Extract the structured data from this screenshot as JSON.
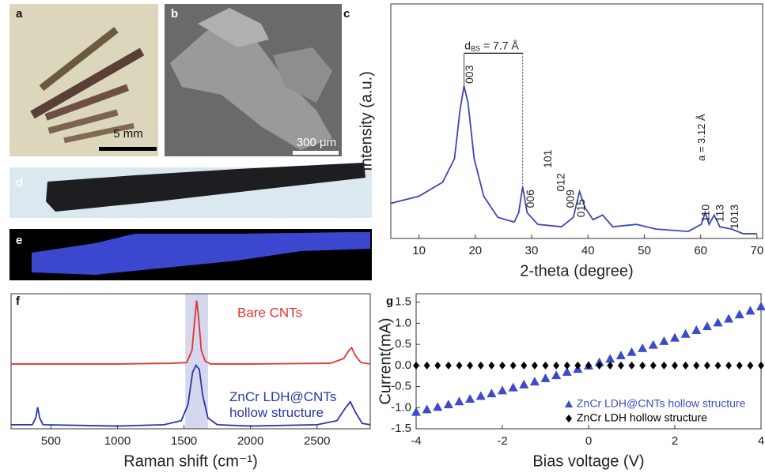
{
  "figure": {
    "panel_labels": [
      "a",
      "b",
      "c",
      "d",
      "e",
      "f",
      "g"
    ],
    "scale_bars": [
      "5 mm",
      "300 μm"
    ]
  },
  "chart_data": [
    {
      "type": "line",
      "x_label": "2-theta (degree)",
      "y_label": "Intensity (a.u.)",
      "x": [
        5,
        10,
        14.2,
        16.3,
        17.3,
        18.0,
        18.7,
        19.8,
        21.5,
        24.0,
        26.9,
        27.7,
        28.4,
        29.2,
        31.1,
        35.3,
        37.4,
        38.5,
        39.5,
        40.9,
        42.6,
        44.4,
        48.6,
        52.1,
        57.8,
        60.1,
        60.8,
        61.5,
        62.4,
        63.4,
        65.5,
        67.6,
        70
      ],
      "series": [
        {
          "color": "#3b47b3",
          "values": [
            15,
            18,
            24,
            34,
            55,
            65,
            58,
            34,
            18,
            9,
            7,
            11,
            22,
            11,
            6,
            5,
            9,
            20,
            13,
            8,
            10,
            5,
            6,
            4,
            3,
            6,
            11,
            6,
            10,
            5,
            4,
            2,
            2
          ]
        }
      ],
      "xlim": [
        5,
        71
      ],
      "xticks": [
        10,
        20,
        30,
        40,
        50,
        60,
        70
      ],
      "ylim": [
        0,
        100
      ],
      "peak_labels": [
        {
          "text": "003",
          "x": 19.1,
          "y": 66
        },
        {
          "text": "006",
          "x": 29.9,
          "y": 13
        },
        {
          "text": "101",
          "x": 33.0,
          "y": 30
        },
        {
          "text": "012",
          "x": 35.3,
          "y": 20
        },
        {
          "text": "009",
          "x": 37.0,
          "y": 13
        },
        {
          "text": "015",
          "x": 38.9,
          "y": 9
        },
        {
          "text": "110",
          "x": 61.0,
          "y": 7
        },
        {
          "text": "113",
          "x": 63.5,
          "y": 7
        },
        {
          "text": "1013",
          "x": 66.1,
          "y": 4
        }
      ],
      "annotations": [
        {
          "parts": [
            "d",
            "BS",
            " = 7.7 Å"
          ],
          "x": 18.1,
          "y": 82,
          "bracket": {
            "x": [
              18.0,
              28.4
            ],
            "y": 79,
            "to": [
              65,
              22
            ]
          }
        },
        {
          "parts": [
            "a = 3.12 Å"
          ],
          "x": 60.3,
          "y": 33,
          "rotated": true
        }
      ]
    },
    {
      "type": "line",
      "x_label": "Raman shift (cm⁻¹)",
      "xlim": [
        200,
        2900
      ],
      "xticks": [
        500,
        1000,
        1500,
        2000,
        2500
      ],
      "ylim": [
        0,
        100
      ],
      "band": [
        1510,
        1680
      ],
      "series": [
        {
          "name": "Bare CNTs",
          "color": "#e0352a",
          "x": [
            200,
            1000,
            1400,
            1520,
            1560,
            1580,
            1595,
            1610,
            1630,
            1660,
            1700,
            2000,
            2600,
            2700,
            2740,
            2760,
            2790,
            2830,
            2900
          ],
          "values": [
            48,
            48,
            48.5,
            49,
            58,
            80,
            95,
            82,
            58,
            50,
            48,
            48,
            48.5,
            52,
            58,
            60,
            54,
            49,
            48
          ]
        },
        {
          "name": "ZnCr LDH@CNTs\nhollow structure",
          "color": "#2a36a6",
          "x": [
            200,
            360,
            385,
            400,
            415,
            440,
            1000,
            1350,
            1480,
            1530,
            1565,
            1590,
            1615,
            1640,
            1680,
            1750,
            2000,
            2500,
            2650,
            2710,
            2750,
            2790,
            2840,
            2900
          ],
          "values": [
            3,
            3,
            8,
            16,
            8,
            3,
            2,
            3,
            6,
            18,
            42,
            47,
            44,
            25,
            8,
            3,
            2,
            3,
            6,
            15,
            20,
            12,
            4,
            3
          ]
        }
      ]
    },
    {
      "type": "scatter",
      "x_label": "Bias voltage (V)",
      "y_label": "Current(mA)",
      "x": [
        -4,
        -3.75,
        -3.5,
        -3.25,
        -3,
        -2.75,
        -2.5,
        -2.25,
        -2,
        -1.75,
        -1.5,
        -1.25,
        -1,
        -0.75,
        -0.5,
        -0.25,
        0,
        0.25,
        0.5,
        0.75,
        1,
        1.25,
        1.5,
        1.75,
        2,
        2.25,
        2.5,
        2.75,
        3,
        3.25,
        3.5,
        3.75,
        4
      ],
      "xlim": [
        -4,
        4
      ],
      "xticks": [
        -4,
        -2,
        0,
        2,
        4
      ],
      "ylim": [
        -1.5,
        1.7
      ],
      "yticks": [
        -1.5,
        {
          "value": -1,
          "label": "-1.0"
        },
        -0.5,
        {
          "value": 0,
          "label": "0.0"
        },
        0.5,
        {
          "value": 1,
          "label": "1.0"
        },
        1.5
      ],
      "legend": "lower right",
      "series": [
        {
          "name": "ZnCr LDH@CNTs hollow structure",
          "color": "#3d4bc8",
          "marker": "triangle",
          "values": [
            -1.1,
            -1.04,
            -0.98,
            -0.92,
            -0.85,
            -0.79,
            -0.72,
            -0.66,
            -0.59,
            -0.52,
            -0.45,
            -0.38,
            -0.3,
            -0.23,
            -0.15,
            -0.08,
            0,
            0.08,
            0.16,
            0.24,
            0.32,
            0.41,
            0.49,
            0.58,
            0.66,
            0.75,
            0.84,
            0.93,
            1.02,
            1.11,
            1.21,
            1.3,
            1.4
          ]
        },
        {
          "name": "ZnCr LDH hollow structure",
          "color": "#000000",
          "marker": "diamond",
          "values": [
            0,
            0,
            0,
            0,
            0,
            0,
            0,
            0,
            0,
            0,
            0,
            0,
            0,
            0,
            0,
            0,
            0,
            0,
            0,
            0,
            0,
            0,
            0,
            0,
            0,
            0,
            0,
            0,
            0,
            0,
            0,
            0,
            0
          ]
        }
      ]
    }
  ]
}
